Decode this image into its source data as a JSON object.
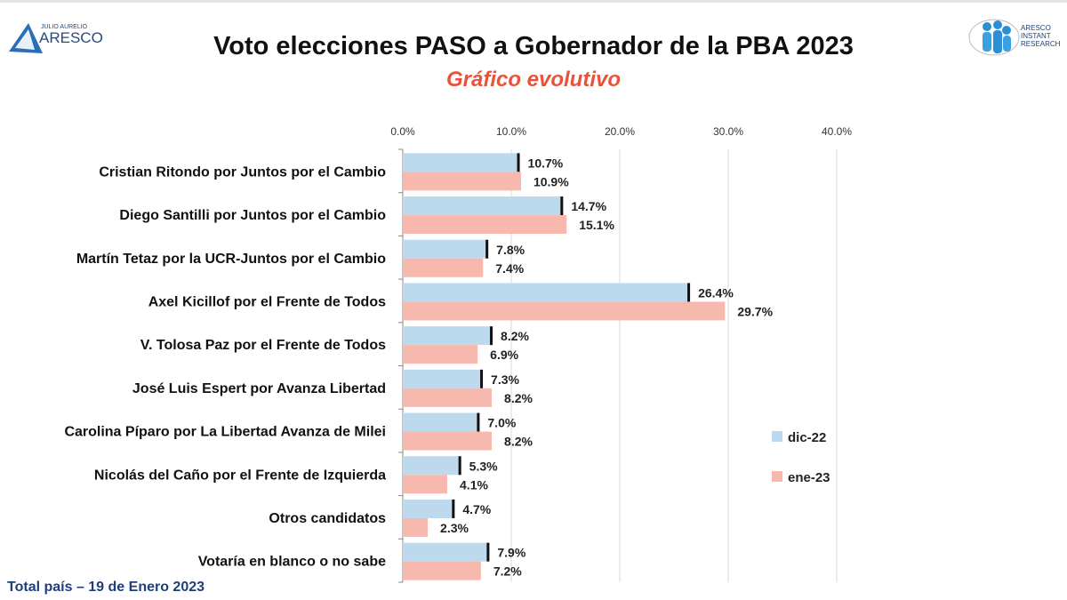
{
  "header": {
    "title": "Voto elecciones PASO a Gobernador de la PBA 2023",
    "subtitle": "Gráfico evolutivo",
    "logo_left": "JULIO AURELIO ARESCO",
    "logo_right": "ARESCO INSTANT RESEARCH"
  },
  "footer": "Total país – 19 de Enero 2023",
  "chart_data": {
    "type": "bar",
    "orientation": "horizontal",
    "title": "Voto elecciones PASO a Gobernador de la PBA 2023",
    "subtitle": "Gráfico evolutivo",
    "categories": [
      "Cristian Ritondo por Juntos por el Cambio",
      "Diego Santilli por Juntos por el Cambio",
      "Martín Tetaz por la UCR-Juntos por el Cambio",
      "Axel Kicillof por el Frente de Todos",
      "V. Tolosa Paz por el Frente de Todos",
      "José Luis Espert por Avanza Libertad",
      "Carolina Píparo por La Libertad Avanza de Milei",
      "Nicolás del Caño por el Frente de Izquierda",
      "Otros candidatos",
      "Votaría en blanco o no sabe"
    ],
    "series": [
      {
        "name": "dic-22",
        "color": "#bcd9ee",
        "values": [
          10.7,
          14.7,
          7.8,
          26.4,
          8.2,
          7.3,
          7.0,
          5.3,
          4.7,
          7.9
        ],
        "labels": [
          "10.7%",
          "14.7%",
          "7.8%",
          "26.4%",
          "8.2%",
          "7.3%",
          "7.0%",
          "5.3%",
          "4.7%",
          "7.9%"
        ]
      },
      {
        "name": "ene-23",
        "color": "#f7b9ae",
        "values": [
          10.9,
          15.1,
          7.4,
          29.7,
          6.9,
          8.2,
          8.2,
          4.1,
          2.3,
          7.2
        ],
        "labels": [
          "10.9%",
          "15.1%",
          "7.4%",
          "29.7%",
          "6.9%",
          "8.2%",
          "8.2%",
          "4.1%",
          "2.3%",
          "7.2%"
        ]
      }
    ],
    "xlim": [
      0,
      40
    ],
    "xticks": [
      "0.0%",
      "10.0%",
      "20.0%",
      "30.0%",
      "40.0%"
    ],
    "xtick_values": [
      0,
      10,
      20,
      30,
      40
    ],
    "axis_position": "top",
    "grid": true,
    "legend_placement": "right"
  }
}
